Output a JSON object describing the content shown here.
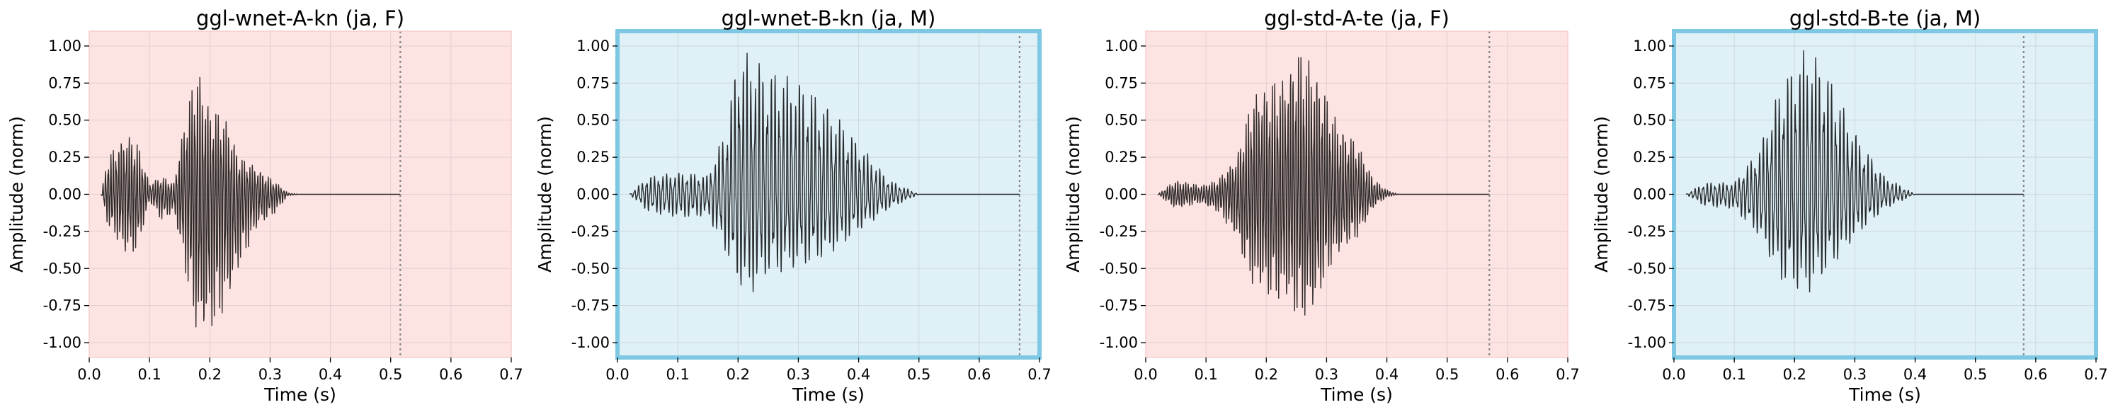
{
  "chart_data": [
    {
      "type": "line",
      "title": "ggl-wnet-A-kn (ja, F)",
      "xlabel": "Time (s)",
      "ylabel": "Amplitude (norm)",
      "xlim": [
        0.0,
        0.7
      ],
      "ylim": [
        -1.1,
        1.1
      ],
      "xticks": [
        "0.0",
        "0.1",
        "0.2",
        "0.3",
        "0.4",
        "0.5",
        "0.6",
        "0.7"
      ],
      "yticks": [
        "1.00",
        "0.75",
        "0.50",
        "0.25",
        "0.00",
        "-0.25",
        "-0.50",
        "-0.75",
        "-1.00"
      ],
      "grid": true,
      "background": "#fde3e1",
      "highlighted": false,
      "duration_marker": 0.516,
      "waveform": {
        "color": "#2f2b2b",
        "envelope": [
          [
            0.02,
            0.0,
            0.0
          ],
          [
            0.03,
            0.25,
            -0.2
          ],
          [
            0.06,
            0.42,
            -0.42
          ],
          [
            0.08,
            0.35,
            -0.38
          ],
          [
            0.1,
            0.08,
            -0.05
          ],
          [
            0.12,
            0.12,
            -0.18
          ],
          [
            0.14,
            0.08,
            -0.12
          ],
          [
            0.16,
            0.55,
            -0.55
          ],
          [
            0.18,
            0.88,
            -0.98
          ],
          [
            0.2,
            0.6,
            -0.95
          ],
          [
            0.23,
            0.5,
            -0.75
          ],
          [
            0.25,
            0.25,
            -0.48
          ],
          [
            0.28,
            0.18,
            -0.22
          ],
          [
            0.31,
            0.08,
            -0.12
          ],
          [
            0.33,
            0.01,
            -0.01
          ],
          [
            0.35,
            0.0,
            0.0
          ]
        ]
      }
    },
    {
      "type": "line",
      "title": "ggl-wnet-B-kn (ja, M)",
      "xlabel": "Time (s)",
      "ylabel": "Amplitude (norm)",
      "xlim": [
        0.0,
        0.7
      ],
      "ylim": [
        -1.1,
        1.1
      ],
      "xticks": [
        "0.0",
        "0.1",
        "0.2",
        "0.3",
        "0.4",
        "0.5",
        "0.6",
        "0.7"
      ],
      "yticks": [
        "1.00",
        "0.75",
        "0.50",
        "0.25",
        "0.00",
        "-0.25",
        "-0.50",
        "-0.75",
        "-1.00"
      ],
      "grid": true,
      "background": "#dff0f7",
      "highlighted": true,
      "highlight_color": "#7ec8e3",
      "duration_marker": 0.667,
      "waveform": {
        "color": "#2a2d2e",
        "envelope": [
          [
            0.02,
            0.0,
            0.0
          ],
          [
            0.05,
            0.12,
            -0.12
          ],
          [
            0.1,
            0.15,
            -0.16
          ],
          [
            0.15,
            0.13,
            -0.15
          ],
          [
            0.18,
            0.45,
            -0.4
          ],
          [
            0.2,
            0.98,
            -0.62
          ],
          [
            0.22,
            0.95,
            -0.68
          ],
          [
            0.25,
            0.85,
            -0.55
          ],
          [
            0.3,
            0.78,
            -0.5
          ],
          [
            0.35,
            0.6,
            -0.42
          ],
          [
            0.4,
            0.35,
            -0.25
          ],
          [
            0.45,
            0.1,
            -0.1
          ],
          [
            0.48,
            0.04,
            -0.04
          ],
          [
            0.5,
            0.0,
            0.0
          ]
        ]
      }
    },
    {
      "type": "line",
      "title": "ggl-std-A-te (ja, F)",
      "xlabel": "Time (s)",
      "ylabel": "Amplitude (norm)",
      "xlim": [
        0.0,
        0.7
      ],
      "ylim": [
        -1.1,
        1.1
      ],
      "xticks": [
        "0.0",
        "0.1",
        "0.2",
        "0.3",
        "0.4",
        "0.5",
        "0.6",
        "0.7"
      ],
      "yticks": [
        "1.00",
        "0.75",
        "0.50",
        "0.25",
        "0.00",
        "-0.25",
        "-0.50",
        "-0.75",
        "-1.00"
      ],
      "grid": true,
      "background": "#fde3e1",
      "highlighted": false,
      "duration_marker": 0.57,
      "waveform": {
        "color": "#2f2b2b",
        "envelope": [
          [
            0.02,
            0.0,
            0.0
          ],
          [
            0.05,
            0.1,
            -0.1
          ],
          [
            0.09,
            0.06,
            -0.06
          ],
          [
            0.12,
            0.1,
            -0.12
          ],
          [
            0.15,
            0.25,
            -0.3
          ],
          [
            0.18,
            0.7,
            -0.65
          ],
          [
            0.2,
            0.75,
            -0.7
          ],
          [
            0.23,
            0.8,
            -0.72
          ],
          [
            0.25,
            0.98,
            -0.85
          ],
          [
            0.28,
            0.9,
            -0.8
          ],
          [
            0.31,
            0.55,
            -0.45
          ],
          [
            0.35,
            0.35,
            -0.3
          ],
          [
            0.38,
            0.1,
            -0.08
          ],
          [
            0.4,
            0.03,
            -0.02
          ],
          [
            0.42,
            0.0,
            0.0
          ]
        ]
      }
    },
    {
      "type": "line",
      "title": "ggl-std-B-te (ja, M)",
      "xlabel": "Time (s)",
      "ylabel": "Amplitude (norm)",
      "xlim": [
        0.0,
        0.7
      ],
      "ylim": [
        -1.1,
        1.1
      ],
      "xticks": [
        "0.0",
        "0.1",
        "0.2",
        "0.3",
        "0.4",
        "0.5",
        "0.6",
        "0.7"
      ],
      "yticks": [
        "1.00",
        "0.75",
        "0.50",
        "0.25",
        "0.00",
        "-0.25",
        "-0.50",
        "-0.75",
        "-1.00"
      ],
      "grid": true,
      "background": "#dff0f7",
      "highlighted": true,
      "highlight_color": "#7ec8e3",
      "duration_marker": 0.58,
      "waveform": {
        "color": "#2a2d2e",
        "envelope": [
          [
            0.02,
            0.0,
            0.0
          ],
          [
            0.05,
            0.08,
            -0.08
          ],
          [
            0.1,
            0.08,
            -0.1
          ],
          [
            0.14,
            0.3,
            -0.28
          ],
          [
            0.18,
            0.78,
            -0.6
          ],
          [
            0.2,
            0.9,
            -0.65
          ],
          [
            0.22,
            1.0,
            -0.68
          ],
          [
            0.25,
            0.88,
            -0.55
          ],
          [
            0.28,
            0.6,
            -0.4
          ],
          [
            0.31,
            0.35,
            -0.25
          ],
          [
            0.35,
            0.12,
            -0.1
          ],
          [
            0.38,
            0.05,
            -0.04
          ],
          [
            0.4,
            0.0,
            0.0
          ]
        ]
      }
    }
  ]
}
